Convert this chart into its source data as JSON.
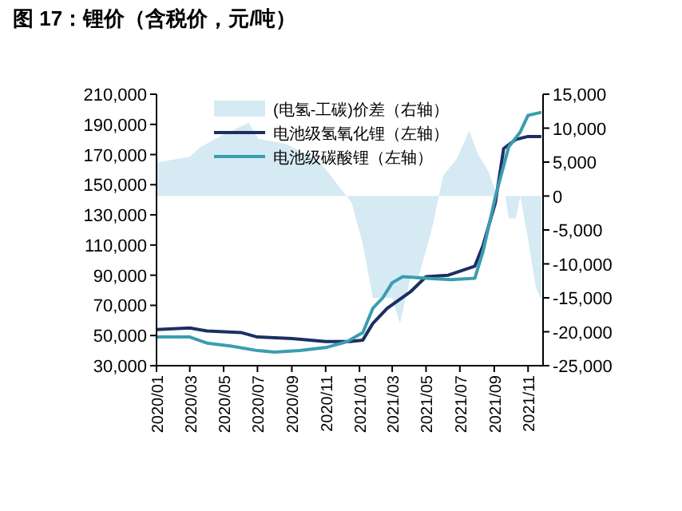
{
  "chart_data": {
    "type": "line",
    "title": "图 17：锂价（含税价，元/吨）",
    "legend": "top",
    "xlim": [
      "2020-01-01",
      "2021-11-28"
    ],
    "xticks": [
      {
        "value": "2020-01",
        "label": "2020/01"
      },
      {
        "value": "2020-03",
        "label": "2020/03"
      },
      {
        "value": "2020-05",
        "label": "2020/05"
      },
      {
        "value": "2020-07",
        "label": "2020/07"
      },
      {
        "value": "2020-09",
        "label": "2020/09"
      },
      {
        "value": "2020-11",
        "label": "2020/11"
      },
      {
        "value": "2021-01",
        "label": "2021/01"
      },
      {
        "value": "2021-03",
        "label": "2021/03"
      },
      {
        "value": "2021-05",
        "label": "2021/05"
      },
      {
        "value": "2021-07",
        "label": "2021/07"
      },
      {
        "value": "2021-09",
        "label": "2021/09"
      },
      {
        "value": "2021-11",
        "label": "2021/11"
      }
    ],
    "ylim": [
      30000,
      210000
    ],
    "yticks": [
      {
        "value": 30000,
        "label": "30,000"
      },
      {
        "value": 50000,
        "label": "50,000"
      },
      {
        "value": 70000,
        "label": "70,000"
      },
      {
        "value": 90000,
        "label": "90,000"
      },
      {
        "value": 110000,
        "label": "110,000"
      },
      {
        "value": 130000,
        "label": "130,000"
      },
      {
        "value": 150000,
        "label": "150,000"
      },
      {
        "value": 170000,
        "label": "170,000"
      },
      {
        "value": 190000,
        "label": "190,000"
      },
      {
        "value": 210000,
        "label": "210,000"
      }
    ],
    "y2lim": [
      -25000,
      15000
    ],
    "y2ticks": [
      {
        "value": -25000,
        "label": "-25,000"
      },
      {
        "value": -20000,
        "label": "-20,000"
      },
      {
        "value": -15000,
        "label": "-15,000"
      },
      {
        "value": -10000,
        "label": "-10,000"
      },
      {
        "value": -5000,
        "label": "-5,000"
      },
      0,
      {
        "value": 5000,
        "label": "5,000"
      },
      {
        "value": 10000,
        "label": "10,000"
      },
      {
        "value": 15000,
        "label": "15,000"
      }
    ],
    "series": [
      {
        "name": "(电氢-工碳)价差（右轴）",
        "type": "area",
        "axis": "y2",
        "color": "#d5eaf3",
        "x": [
          "2020-01-01",
          "2020-03-01",
          "2020-03-20",
          "2020-04-28",
          "2020-06-15",
          "2020-07-03",
          "2020-08-20",
          "2020-10-20",
          "2020-11-25",
          "2020-12-18",
          "2021-01-07",
          "2021-01-25",
          "2021-03-01",
          "2021-03-15",
          "2021-04-03",
          "2021-04-18",
          "2021-05-12",
          "2021-06-01",
          "2021-06-25",
          "2021-07-18",
          "2021-08-03",
          "2021-08-21",
          "2021-09-06",
          "2021-09-21",
          "2021-09-27",
          "2021-10-10",
          "2021-10-18",
          "2021-11-01",
          "2021-11-15",
          "2021-11-25"
        ],
        "values": [
          4900,
          5800,
          7200,
          8900,
          10800,
          8400,
          7700,
          5200,
          1400,
          -1000,
          -7100,
          -15000,
          -15000,
          -18800,
          -12000,
          -11800,
          -4700,
          3000,
          5400,
          9600,
          6100,
          3700,
          0,
          0,
          -3300,
          -3300,
          0,
          -6400,
          -13400,
          -15300
        ]
      },
      {
        "name": "电池级氢氧化锂（左轴）",
        "color": "#1c2f63",
        "x": [
          "2020-01-01",
          "2020-03-01",
          "2020-04-01",
          "2020-06-01",
          "2020-07-01",
          "2020-09-01",
          "2020-11-01",
          "2020-12-15",
          "2021-01-07",
          "2021-01-25",
          "2021-02-20",
          "2021-04-03",
          "2021-05-01",
          "2021-06-10",
          "2021-07-28",
          "2021-08-12",
          "2021-09-03",
          "2021-09-18",
          "2021-10-10",
          "2021-11-01",
          "2021-11-25"
        ],
        "values": [
          54000,
          55000,
          53000,
          52000,
          49000,
          48000,
          46000,
          46000,
          47000,
          58000,
          68000,
          79000,
          89000,
          90000,
          96000,
          110000,
          138000,
          174000,
          180000,
          182000,
          182000
        ]
      },
      {
        "name": "电池级碳酸锂（左轴）",
        "color": "#3a9db0",
        "x": [
          "2020-01-01",
          "2020-03-01",
          "2020-04-01",
          "2020-05-15",
          "2020-07-01",
          "2020-08-01",
          "2020-09-15",
          "2020-11-01",
          "2020-12-10",
          "2021-01-07",
          "2021-01-25",
          "2021-02-12",
          "2021-03-01",
          "2021-03-20",
          "2021-05-01",
          "2021-06-15",
          "2021-07-28",
          "2021-08-12",
          "2021-09-03",
          "2021-09-27",
          "2021-10-18",
          "2021-11-01",
          "2021-11-25"
        ],
        "values": [
          49000,
          49000,
          45000,
          43000,
          40000,
          39000,
          40000,
          42000,
          46000,
          52000,
          68000,
          75000,
          85000,
          89000,
          88000,
          87000,
          88000,
          106000,
          142000,
          175000,
          185000,
          196000,
          198000
        ]
      }
    ]
  }
}
